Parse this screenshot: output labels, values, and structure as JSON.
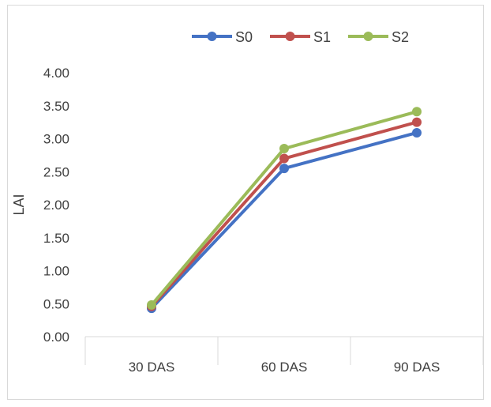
{
  "chart_data": {
    "type": "line",
    "title": "",
    "xlabel": "",
    "ylabel": "LAI",
    "categories": [
      "30 DAS",
      "60 DAS",
      "90 DAS"
    ],
    "ylim": [
      0,
      4
    ],
    "yticks": [
      "0.00",
      "0.50",
      "1.00",
      "1.50",
      "2.00",
      "2.50",
      "3.00",
      "3.50",
      "4.00"
    ],
    "grid": false,
    "legend_position": "top",
    "series": [
      {
        "name": "S0",
        "color": "#4472c4",
        "values": [
          0.43,
          2.55,
          3.09
        ]
      },
      {
        "name": "S1",
        "color": "#c0504d",
        "values": [
          0.46,
          2.7,
          3.25
        ]
      },
      {
        "name": "S2",
        "color": "#9bbb59",
        "values": [
          0.48,
          2.85,
          3.41
        ]
      }
    ]
  }
}
